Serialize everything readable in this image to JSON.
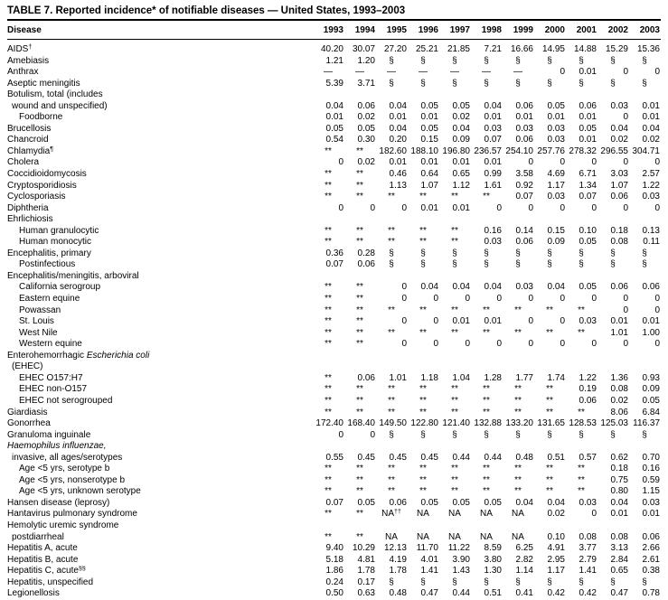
{
  "colors": {
    "text": "#000000",
    "background": "#ffffff"
  },
  "title": "TABLE 7. Reported incidence* of notifiable diseases — United States, 1993–2003",
  "table": {
    "columns": [
      "Disease",
      "1993",
      "1994",
      "1995",
      "1996",
      "1997",
      "1998",
      "1999",
      "2000",
      "2001",
      "2002",
      "2003"
    ],
    "rows": [
      {
        "label": "AIDS",
        "sup": "†",
        "indent": 0,
        "values": [
          "40.20",
          "30.07",
          "27.20",
          "25.21",
          "21.85",
          "7.21",
          "16.66",
          "14.95",
          "14.88",
          "15.29",
          "15.36"
        ]
      },
      {
        "label": "Amebiasis",
        "indent": 0,
        "values": [
          "1.21",
          "1.20",
          "§",
          "§",
          "§",
          "§",
          "§",
          "§",
          "§",
          "§",
          "§"
        ]
      },
      {
        "label": "Anthrax",
        "indent": 0,
        "values": [
          "—",
          "—",
          "—",
          "—",
          "—",
          "—",
          "—",
          "0",
          "0.01",
          "0",
          "0"
        ]
      },
      {
        "label": "Aseptic meningitis",
        "indent": 0,
        "values": [
          "5.39",
          "3.71",
          "§",
          "§",
          "§",
          "§",
          "§",
          "§",
          "§",
          "§",
          "§"
        ]
      },
      {
        "label": "Botulism, total (includes",
        "indent": 0,
        "values": null
      },
      {
        "label": "wound and unspecified)",
        "indent": 1,
        "values": [
          "0.04",
          "0.06",
          "0.04",
          "0.05",
          "0.05",
          "0.04",
          "0.06",
          "0.05",
          "0.06",
          "0.03",
          "0.01"
        ]
      },
      {
        "label": "Foodborne",
        "indent": 2,
        "values": [
          "0.01",
          "0.02",
          "0.01",
          "0.01",
          "0.02",
          "0.01",
          "0.01",
          "0.01",
          "0.01",
          "0",
          "0.01"
        ]
      },
      {
        "label": "Brucellosis",
        "indent": 0,
        "values": [
          "0.05",
          "0.05",
          "0.04",
          "0.05",
          "0.04",
          "0.03",
          "0.03",
          "0.03",
          "0.05",
          "0.04",
          "0.04"
        ]
      },
      {
        "label": "Chancroid",
        "indent": 0,
        "values": [
          "0.54",
          "0.30",
          "0.20",
          "0.15",
          "0.09",
          "0.07",
          "0.06",
          "0.03",
          "0.01",
          "0.02",
          "0.02"
        ]
      },
      {
        "label": "Chlamydia",
        "sup": "¶",
        "indent": 0,
        "values": [
          "**",
          "**",
          "182.60",
          "188.10",
          "196.80",
          "236.57",
          "254.10",
          "257.76",
          "278.32",
          "296.55",
          "304.71"
        ]
      },
      {
        "label": "Cholera",
        "indent": 0,
        "values": [
          "0",
          "0.02",
          "0.01",
          "0.01",
          "0.01",
          "0.01",
          "0",
          "0",
          "0",
          "0",
          "0"
        ]
      },
      {
        "label": "Coccidioidomycosis",
        "indent": 0,
        "values": [
          "**",
          "**",
          "0.46",
          "0.64",
          "0.65",
          "0.99",
          "3.58",
          "4.69",
          "6.71",
          "3.03",
          "2.57"
        ]
      },
      {
        "label": "Cryptosporidiosis",
        "indent": 0,
        "values": [
          "**",
          "**",
          "1.13",
          "1.07",
          "1.12",
          "1.61",
          "0.92",
          "1.17",
          "1.34",
          "1.07",
          "1.22"
        ]
      },
      {
        "label": "Cyclosporiasis",
        "indent": 0,
        "values": [
          "**",
          "**",
          "**",
          "**",
          "**",
          "**",
          "0.07",
          "0.03",
          "0.07",
          "0.06",
          "0.03"
        ]
      },
      {
        "label": "Diphtheria",
        "indent": 0,
        "values": [
          "0",
          "0",
          "0",
          "0.01",
          "0.01",
          "0",
          "0",
          "0",
          "0",
          "0",
          "0"
        ]
      },
      {
        "label": "Ehrlichiosis",
        "indent": 0,
        "values": null
      },
      {
        "label": "Human granulocytic",
        "indent": 2,
        "values": [
          "**",
          "**",
          "**",
          "**",
          "**",
          "0.16",
          "0.14",
          "0.15",
          "0.10",
          "0.18",
          "0.13"
        ]
      },
      {
        "label": "Human monocytic",
        "indent": 2,
        "values": [
          "**",
          "**",
          "**",
          "**",
          "**",
          "0.03",
          "0.06",
          "0.09",
          "0.05",
          "0.08",
          "0.11"
        ]
      },
      {
        "label": "Encephalitis, primary",
        "indent": 0,
        "values": [
          "0.36",
          "0.28",
          "§",
          "§",
          "§",
          "§",
          "§",
          "§",
          "§",
          "§",
          "§"
        ]
      },
      {
        "label": "Postinfectious",
        "indent": 2,
        "values": [
          "0.07",
          "0.06",
          "§",
          "§",
          "§",
          "§",
          "§",
          "§",
          "§",
          "§",
          "§"
        ]
      },
      {
        "label": "Encephalitis/meningitis, arboviral",
        "indent": 0,
        "values": null
      },
      {
        "label": "California serogroup",
        "indent": 2,
        "values": [
          "**",
          "**",
          "0",
          "0.04",
          "0.04",
          "0.04",
          "0.03",
          "0.04",
          "0.05",
          "0.06",
          "0.06"
        ]
      },
      {
        "label": "Eastern equine",
        "indent": 2,
        "values": [
          "**",
          "**",
          "0",
          "0",
          "0",
          "0",
          "0",
          "0",
          "0",
          "0",
          "0"
        ]
      },
      {
        "label": "Powassan",
        "indent": 2,
        "values": [
          "**",
          "**",
          "**",
          "**",
          "**",
          "**",
          "**",
          "**",
          "**",
          "0",
          "0"
        ]
      },
      {
        "label": "St. Louis",
        "indent": 2,
        "values": [
          "**",
          "**",
          "0",
          "0",
          "0.01",
          "0.01",
          "0",
          "0",
          "0.03",
          "0.01",
          "0.01"
        ]
      },
      {
        "label": "West Nile",
        "indent": 2,
        "values": [
          "**",
          "**",
          "**",
          "**",
          "**",
          "**",
          "**",
          "**",
          "**",
          "1.01",
          "1.00"
        ]
      },
      {
        "label": "Western equine",
        "indent": 2,
        "values": [
          "**",
          "**",
          "0",
          "0",
          "0",
          "0",
          "0",
          "0",
          "0",
          "0",
          "0"
        ]
      },
      {
        "label": "Enterohemorrhagic ",
        "label_italic": "Escherichia coli",
        "indent": 0,
        "values": null
      },
      {
        "label": "(EHEC)",
        "indent": 1,
        "values": null
      },
      {
        "label": "EHEC O157:H7",
        "indent": 2,
        "values": [
          "**",
          "0.06",
          "1.01",
          "1.18",
          "1.04",
          "1.28",
          "1.77",
          "1.74",
          "1.22",
          "1.36",
          "0.93"
        ]
      },
      {
        "label": "EHEC non-O157",
        "indent": 2,
        "values": [
          "**",
          "**",
          "**",
          "**",
          "**",
          "**",
          "**",
          "**",
          "0.19",
          "0.08",
          "0.09"
        ]
      },
      {
        "label": "EHEC not serogrouped",
        "indent": 2,
        "values": [
          "**",
          "**",
          "**",
          "**",
          "**",
          "**",
          "**",
          "**",
          "0.06",
          "0.02",
          "0.05"
        ]
      },
      {
        "label": "Giardiasis",
        "indent": 0,
        "values": [
          "**",
          "**",
          "**",
          "**",
          "**",
          "**",
          "**",
          "**",
          "**",
          "8.06",
          "6.84"
        ]
      },
      {
        "label": "Gonorrhea",
        "indent": 0,
        "values": [
          "172.40",
          "168.40",
          "149.50",
          "122.80",
          "121.40",
          "132.88",
          "133.20",
          "131.65",
          "128.53",
          "125.03",
          "116.37"
        ]
      },
      {
        "label": "Granuloma inguinale",
        "indent": 0,
        "values": [
          "0",
          "0",
          "§",
          "§",
          "§",
          "§",
          "§",
          "§",
          "§",
          "§",
          "§"
        ]
      },
      {
        "label": "",
        "label_italic": "Haemophilus influenzae,",
        "indent": 0,
        "values": null
      },
      {
        "label": "invasive, all ages/serotypes",
        "indent": 1,
        "values": [
          "0.55",
          "0.45",
          "0.45",
          "0.45",
          "0.44",
          "0.44",
          "0.48",
          "0.51",
          "0.57",
          "0.62",
          "0.70"
        ]
      },
      {
        "label": "Age <5 yrs, serotype b",
        "indent": 2,
        "values": [
          "**",
          "**",
          "**",
          "**",
          "**",
          "**",
          "**",
          "**",
          "**",
          "0.18",
          "0.16"
        ]
      },
      {
        "label": "Age <5 yrs, nonserotype b",
        "indent": 2,
        "values": [
          "**",
          "**",
          "**",
          "**",
          "**",
          "**",
          "**",
          "**",
          "**",
          "0.75",
          "0.59"
        ]
      },
      {
        "label": "Age <5 yrs, unknown serotype",
        "indent": 2,
        "values": [
          "**",
          "**",
          "**",
          "**",
          "**",
          "**",
          "**",
          "**",
          "**",
          "0.80",
          "1.15"
        ]
      },
      {
        "label": "Hansen disease (leprosy)",
        "indent": 0,
        "values": [
          "0.07",
          "0.05",
          "0.06",
          "0.05",
          "0.05",
          "0.05",
          "0.04",
          "0.04",
          "0.03",
          "0.04",
          "0.03"
        ]
      },
      {
        "label": "Hantavirus pulmonary syndrome",
        "indent": 0,
        "values": [
          "**",
          "**",
          "NA††",
          "NA",
          "NA",
          "NA",
          "NA",
          "0.02",
          "0",
          "0.01",
          "0.01"
        ]
      },
      {
        "label": "Hemolytic uremic syndrome",
        "indent": 0,
        "values": null
      },
      {
        "label": "postdiarrheal",
        "indent": 1,
        "values": [
          "**",
          "**",
          "NA",
          "NA",
          "NA",
          "NA",
          "NA",
          "0.10",
          "0.08",
          "0.08",
          "0.06"
        ]
      },
      {
        "label": "Hepatitis A, acute",
        "indent": 0,
        "values": [
          "9.40",
          "10.29",
          "12.13",
          "11.70",
          "11.22",
          "8.59",
          "6.25",
          "4.91",
          "3.77",
          "3.13",
          "2.66"
        ]
      },
      {
        "label": "Hepatitis B, acute",
        "indent": 0,
        "values": [
          "5.18",
          "4.81",
          "4.19",
          "4.01",
          "3.90",
          "3.80",
          "2.82",
          "2.95",
          "2.79",
          "2.84",
          "2.61"
        ]
      },
      {
        "label": "Hepatitis C, acute",
        "sup": "§§",
        "indent": 0,
        "values": [
          "1.86",
          "1.78",
          "1.78",
          "1.41",
          "1.43",
          "1.30",
          "1.14",
          "1.17",
          "1.41",
          "0.65",
          "0.38"
        ]
      },
      {
        "label": "Hepatitis, unspecified",
        "indent": 0,
        "values": [
          "0.24",
          "0.17",
          "§",
          "§",
          "§",
          "§",
          "§",
          "§",
          "§",
          "§",
          "§"
        ]
      },
      {
        "label": "Legionellosis",
        "indent": 0,
        "values": [
          "0.50",
          "0.63",
          "0.48",
          "0.47",
          "0.44",
          "0.51",
          "0.41",
          "0.42",
          "0.42",
          "0.47",
          "0.78"
        ]
      }
    ]
  }
}
